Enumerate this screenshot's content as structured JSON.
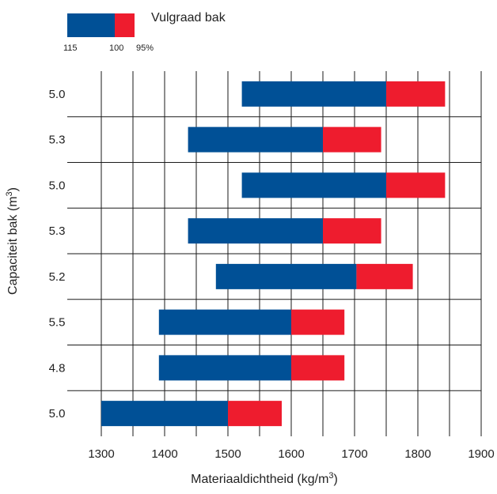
{
  "chart_data": {
    "type": "bar",
    "orientation": "horizontal-range",
    "legend": {
      "title": "Vulgraad bak",
      "labels": [
        "115",
        "100",
        "95%"
      ],
      "colors": [
        "#005096",
        "#ee1c2e"
      ],
      "placement": "top-left"
    },
    "xlabel": "Materiaaldichtheid (kg/m",
    "xlabel_sup": "3",
    "xlabel_end": ")",
    "ylabel": "Capaciteit bak (m",
    "ylabel_sup": "3",
    "ylabel_end": ")",
    "xlim": [
      1300,
      1900
    ],
    "x_ticks": [
      "1300",
      "1400",
      "1500",
      "1600",
      "1700",
      "1800",
      "1900"
    ],
    "grid": true,
    "rows": [
      {
        "label": "5.0",
        "start": 1522,
        "mid": 1750,
        "end": 1843
      },
      {
        "label": "5.3",
        "start": 1437,
        "mid": 1650,
        "end": 1742
      },
      {
        "label": "5.0",
        "start": 1522,
        "mid": 1750,
        "end": 1843
      },
      {
        "label": "5.3",
        "start": 1437,
        "mid": 1650,
        "end": 1742
      },
      {
        "label": "5.2",
        "start": 1481,
        "mid": 1703,
        "end": 1792
      },
      {
        "label": "5.5",
        "start": 1391,
        "mid": 1600,
        "end": 1684
      },
      {
        "label": "4.8",
        "start": 1391,
        "mid": 1600,
        "end": 1684
      },
      {
        "label": "5.0",
        "start": 1300,
        "mid": 1500,
        "end": 1585
      }
    ],
    "series": [
      {
        "name": "115",
        "color": "#005096"
      },
      {
        "name": "100",
        "color": "#ee1c2e"
      }
    ]
  }
}
